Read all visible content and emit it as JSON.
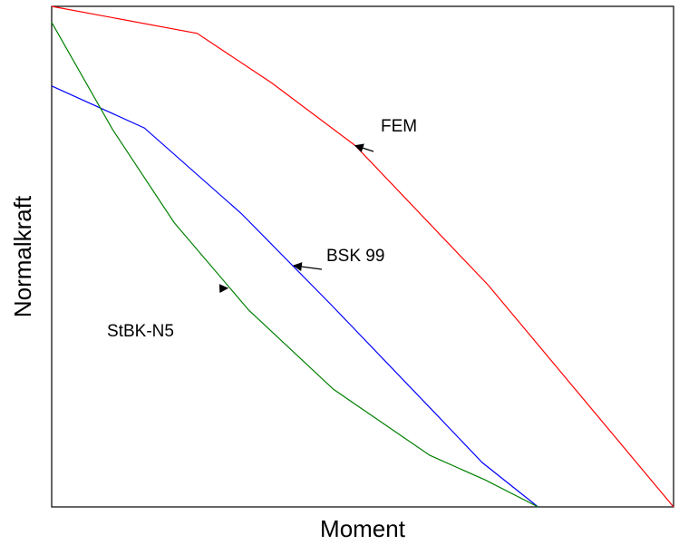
{
  "chart_data": {
    "type": "line",
    "title": "",
    "xlabel": "Moment",
    "ylabel": "Normalkraft",
    "xlim": [
      0,
      100
    ],
    "ylim": [
      0,
      100
    ],
    "grid": false,
    "series": [
      {
        "name": "FEM",
        "color": "#ff0000",
        "x": [
          0,
          23.4,
          35.4,
          48.8,
          70.2,
          100
        ],
        "y": [
          100,
          94.6,
          84.7,
          72.2,
          44.3,
          0
        ]
      },
      {
        "name": "BSK 99",
        "color": "#0000ff",
        "x": [
          0,
          14.9,
          30.5,
          45.0,
          61.6,
          69.2,
          78.2
        ],
        "y": [
          84.1,
          75.7,
          58.6,
          40.3,
          18.8,
          8.9,
          0
        ]
      },
      {
        "name": "StBK-N5",
        "color": "#008000",
        "x": [
          0,
          9.8,
          19.7,
          31.7,
          45.3,
          60.8,
          69.7,
          78.2
        ],
        "y": [
          96.8,
          75.4,
          56.8,
          39.3,
          23.5,
          10.3,
          5.4,
          0
        ]
      }
    ],
    "annotations": [
      {
        "text": "FEM",
        "series": "FEM",
        "target": [
          48.8,
          72.2
        ]
      },
      {
        "text": "BSK 99",
        "series": "BSK 99",
        "target": [
          38.9,
          48.2
        ]
      },
      {
        "text": "StBK-N5",
        "series": "StBK-N5",
        "target": [
          28.3,
          43.7
        ]
      }
    ]
  }
}
